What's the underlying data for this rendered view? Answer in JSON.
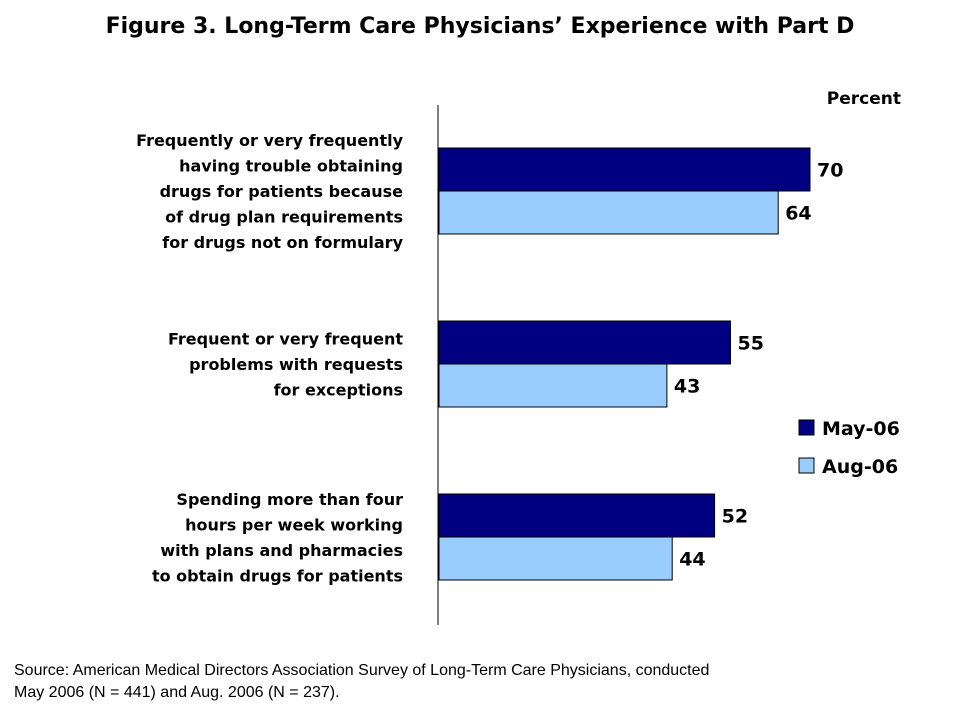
{
  "chart_data": {
    "type": "bar",
    "orientation": "horizontal",
    "title": "Figure 3. Long-Term Care Physicians’ Experience with Part D",
    "unit_label": "Percent",
    "categories": [
      [
        "Frequently or very frequently",
        "having trouble obtaining",
        "drugs for patients because",
        "of drug plan requirements",
        "for drugs not on formulary"
      ],
      [
        "Frequent or very frequent",
        "problems with requests",
        "for exceptions"
      ],
      [
        "Spending more than four",
        "hours per week working",
        "with plans and pharmacies",
        "to obtain drugs for patients"
      ]
    ],
    "series": [
      {
        "name": "May-06",
        "color": "#000080",
        "values": [
          70,
          55,
          52
        ]
      },
      {
        "name": "Aug-06",
        "color": "#99ccff",
        "values": [
          64,
          43,
          44
        ]
      }
    ],
    "xlim": [
      0,
      100
    ],
    "legend_position": "right",
    "grid": false,
    "source": [
      "Source: American Medical Directors Association Survey of Long-Term Care Physicians, conducted",
      "May 2006 (N = 441) and Aug. 2006 (N = 237)."
    ]
  }
}
